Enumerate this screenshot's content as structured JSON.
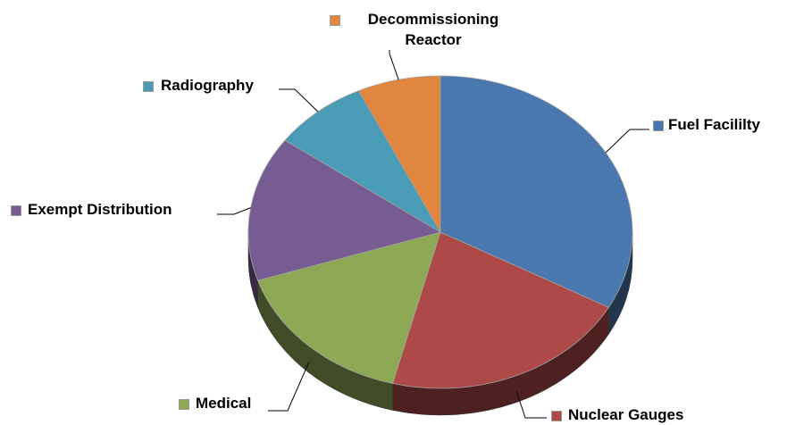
{
  "chart_data": {
    "type": "pie",
    "categories": [
      "Fuel Facililty",
      "Nuclear Gauges",
      "Medical",
      "Exempt Distribution",
      "Radiography",
      "Decommissioning Reactor"
    ],
    "values": [
      33,
      21,
      16,
      15,
      8,
      7
    ],
    "colors": [
      "#4a78ae",
      "#ad4a47",
      "#8ea955",
      "#775c93",
      "#4a9bb5",
      "#e0863e"
    ]
  }
}
